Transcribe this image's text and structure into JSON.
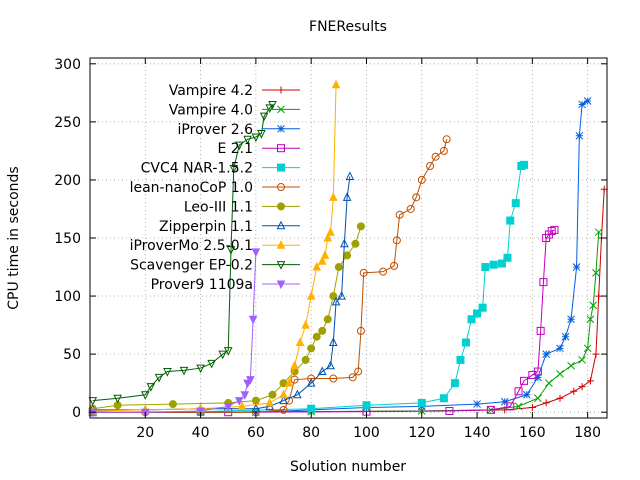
{
  "chart_data": {
    "type": "line",
    "title": "FNEResults",
    "xlabel": "Solution number",
    "ylabel": "CPU time in seconds",
    "xlim": [
      0,
      187
    ],
    "ylim": [
      -5,
      305
    ],
    "xticks": [
      20,
      40,
      60,
      80,
      100,
      120,
      140,
      160,
      180
    ],
    "yticks": [
      0,
      50,
      100,
      150,
      200,
      250,
      300
    ],
    "grid": true,
    "legend_position": "top-left",
    "series": [
      {
        "name": "Vampire 4.2",
        "color": "#d00000",
        "marker": "plus",
        "points": [
          [
            1,
            0
          ],
          [
            40,
            0
          ],
          [
            80,
            0.5
          ],
          [
            120,
            1
          ],
          [
            150,
            2
          ],
          [
            160,
            4
          ],
          [
            165,
            8
          ],
          [
            170,
            12
          ],
          [
            175,
            18
          ],
          [
            178,
            22
          ],
          [
            181,
            27
          ],
          [
            183,
            50
          ],
          [
            184,
            100
          ],
          [
            185,
            150
          ],
          [
            186,
            192
          ]
        ]
      },
      {
        "name": "Vampire 4.0",
        "color": "#00a000",
        "marker": "x",
        "points": [
          [
            1,
            0
          ],
          [
            40,
            0
          ],
          [
            80,
            0.5
          ],
          [
            120,
            1
          ],
          [
            145,
            2
          ],
          [
            155,
            5
          ],
          [
            162,
            12
          ],
          [
            166,
            25
          ],
          [
            170,
            33
          ],
          [
            174,
            40
          ],
          [
            178,
            45
          ],
          [
            180,
            55
          ],
          [
            181,
            80
          ],
          [
            182,
            92
          ],
          [
            183,
            120
          ],
          [
            184,
            155
          ]
        ]
      },
      {
        "name": "iProver 2.6",
        "color": "#0060e0",
        "marker": "star",
        "points": [
          [
            1,
            0
          ],
          [
            40,
            0
          ],
          [
            60,
            0
          ],
          [
            80,
            2
          ],
          [
            100,
            4
          ],
          [
            120,
            5
          ],
          [
            140,
            7
          ],
          [
            150,
            9
          ],
          [
            158,
            15
          ],
          [
            162,
            30
          ],
          [
            165,
            50
          ],
          [
            170,
            55
          ],
          [
            172,
            65
          ],
          [
            174,
            80
          ],
          [
            176,
            125
          ],
          [
            177,
            238
          ],
          [
            178,
            265
          ],
          [
            180,
            268
          ]
        ]
      },
      {
        "name": "E 2.1",
        "color": "#c000c0",
        "marker": "box",
        "points": [
          [
            1,
            0
          ],
          [
            50,
            0
          ],
          [
            100,
            0.5
          ],
          [
            130,
            1
          ],
          [
            145,
            2
          ],
          [
            152,
            5
          ],
          [
            155,
            18
          ],
          [
            157,
            27
          ],
          [
            160,
            32
          ],
          [
            162,
            35
          ],
          [
            163,
            70
          ],
          [
            164,
            112
          ],
          [
            165,
            150
          ],
          [
            166,
            153
          ],
          [
            167,
            156
          ],
          [
            168,
            157
          ]
        ]
      },
      {
        "name": "CVC4 NAR-1.5.2",
        "color": "#00d0d0",
        "marker": "fbox",
        "points": [
          [
            1,
            0
          ],
          [
            40,
            0.5
          ],
          [
            80,
            3
          ],
          [
            100,
            6
          ],
          [
            120,
            8
          ],
          [
            128,
            12
          ],
          [
            132,
            25
          ],
          [
            134,
            45
          ],
          [
            136,
            60
          ],
          [
            138,
            80
          ],
          [
            140,
            85
          ],
          [
            142,
            90
          ],
          [
            143,
            125
          ],
          [
            146,
            127
          ],
          [
            149,
            128
          ],
          [
            151,
            133
          ],
          [
            152,
            165
          ],
          [
            154,
            180
          ],
          [
            156,
            212
          ],
          [
            157,
            213
          ]
        ]
      },
      {
        "name": "lean-nanoCoP 1.0",
        "color": "#c05000",
        "marker": "circle",
        "points": [
          [
            1,
            0
          ],
          [
            20,
            0
          ],
          [
            40,
            0
          ],
          [
            60,
            0
          ],
          [
            70,
            2
          ],
          [
            72,
            10
          ],
          [
            74,
            28
          ],
          [
            80,
            29
          ],
          [
            88,
            29
          ],
          [
            95,
            30
          ],
          [
            97,
            35
          ],
          [
            98,
            70
          ],
          [
            99,
            120
          ],
          [
            106,
            121
          ],
          [
            110,
            126
          ],
          [
            111,
            148
          ],
          [
            112,
            170
          ],
          [
            116,
            175
          ],
          [
            118,
            185
          ],
          [
            120,
            200
          ],
          [
            123,
            212
          ],
          [
            125,
            220
          ],
          [
            128,
            225
          ],
          [
            129,
            235
          ]
        ]
      },
      {
        "name": "Leo-III 1.1",
        "color": "#a0a000",
        "marker": "fcircle",
        "points": [
          [
            1,
            3
          ],
          [
            10,
            6
          ],
          [
            30,
            7
          ],
          [
            50,
            8
          ],
          [
            60,
            10
          ],
          [
            66,
            15
          ],
          [
            70,
            25
          ],
          [
            74,
            35
          ],
          [
            78,
            45
          ],
          [
            80,
            55
          ],
          [
            82,
            65
          ],
          [
            84,
            70
          ],
          [
            86,
            80
          ],
          [
            88,
            100
          ],
          [
            90,
            125
          ],
          [
            93,
            135
          ],
          [
            96,
            145
          ],
          [
            98,
            160
          ]
        ]
      },
      {
        "name": "Zipperpin 1.1",
        "color": "#0050b0",
        "marker": "triangle",
        "points": [
          [
            1,
            2
          ],
          [
            20,
            2
          ],
          [
            40,
            3
          ],
          [
            60,
            3
          ],
          [
            65,
            5
          ],
          [
            70,
            10
          ],
          [
            75,
            15
          ],
          [
            80,
            25
          ],
          [
            84,
            35
          ],
          [
            87,
            40
          ],
          [
            88,
            60
          ],
          [
            89,
            95
          ],
          [
            91,
            100
          ],
          [
            92,
            145
          ],
          [
            93,
            185
          ],
          [
            94,
            203
          ]
        ]
      },
      {
        "name": "iProverMo 2.5-0.1",
        "color": "#ffb000",
        "marker": "ftriangle",
        "points": [
          [
            1,
            1
          ],
          [
            20,
            2
          ],
          [
            40,
            3
          ],
          [
            55,
            5
          ],
          [
            65,
            8
          ],
          [
            70,
            15
          ],
          [
            72,
            25
          ],
          [
            74,
            40
          ],
          [
            76,
            60
          ],
          [
            78,
            75
          ],
          [
            80,
            100
          ],
          [
            82,
            125
          ],
          [
            84,
            130
          ],
          [
            85,
            135
          ],
          [
            86,
            150
          ],
          [
            87,
            155
          ],
          [
            88,
            185
          ],
          [
            89,
            282
          ]
        ]
      },
      {
        "name": "Scavenger EP-0.2",
        "color": "#006000",
        "marker": "itriangle",
        "points": [
          [
            1,
            10
          ],
          [
            10,
            12
          ],
          [
            20,
            15
          ],
          [
            22,
            22
          ],
          [
            25,
            30
          ],
          [
            28,
            35
          ],
          [
            34,
            36
          ],
          [
            40,
            38
          ],
          [
            44,
            42
          ],
          [
            48,
            50
          ],
          [
            50,
            53
          ],
          [
            51,
            140
          ],
          [
            52,
            210
          ],
          [
            54,
            230
          ],
          [
            57,
            235
          ],
          [
            60,
            237
          ],
          [
            62,
            240
          ],
          [
            63,
            255
          ],
          [
            65,
            262
          ],
          [
            66,
            265
          ]
        ]
      },
      {
        "name": "Prover9 1109a",
        "color": "#a060ff",
        "marker": "fitriangle",
        "points": [
          [
            1,
            0
          ],
          [
            20,
            0
          ],
          [
            40,
            1
          ],
          [
            50,
            5
          ],
          [
            54,
            10
          ],
          [
            56,
            15
          ],
          [
            57,
            25
          ],
          [
            58,
            28
          ],
          [
            59,
            80
          ],
          [
            60,
            138
          ]
        ]
      }
    ]
  }
}
